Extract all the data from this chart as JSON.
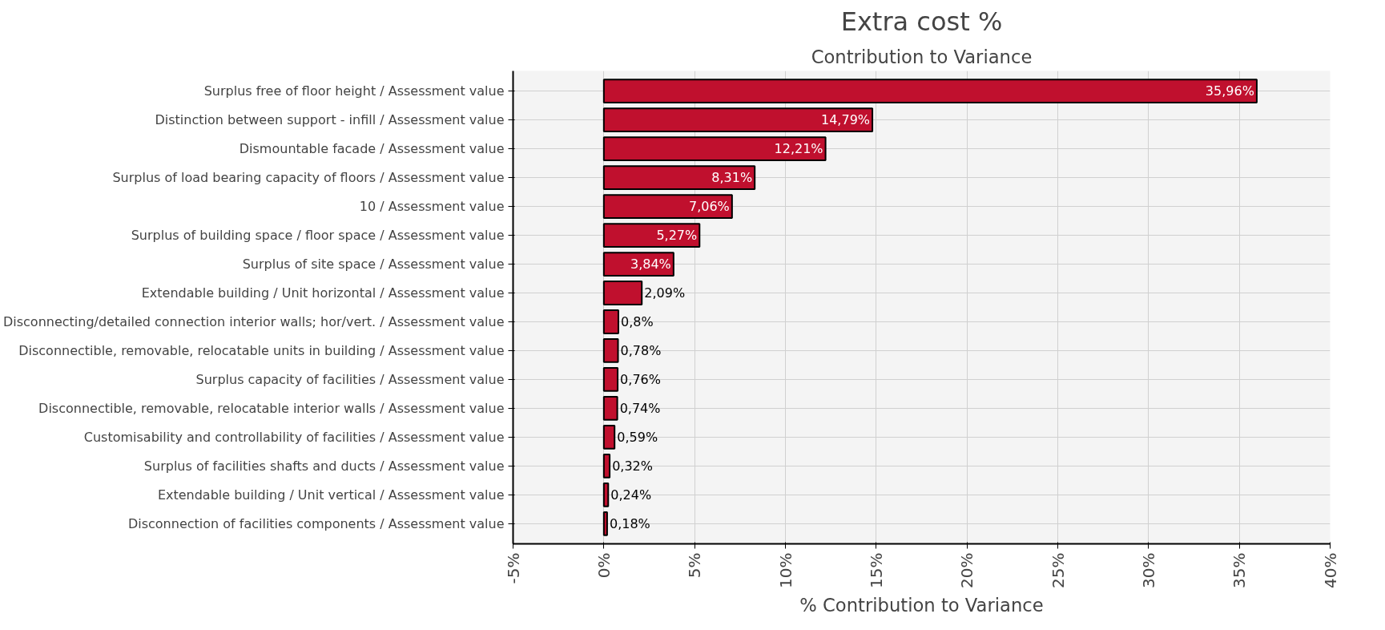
{
  "chart_data": {
    "type": "bar",
    "orientation": "horizontal",
    "title": "Extra cost %",
    "subtitle": "Contribution to Variance",
    "xlabel": "% Contribution to Variance",
    "categories": [
      "Surplus free of floor height / Assessment value",
      "Distinction between support - infill / Assessment value",
      "Dismountable facade / Assessment value",
      "Surplus of load bearing capacity of floors / Assessment value",
      "10 / Assessment value",
      "Surplus of building space / floor space / Assessment value",
      "Surplus of site space / Assessment value",
      "Extendable building / Unit horizontal / Assessment value",
      "Disconnecting/detailed connection interior walls; hor/vert. / Assessment value",
      "Disconnectible, removable, relocatable units in building / Assessment value",
      "Surplus capacity of facilities / Assessment value",
      "Disconnectible, removable, relocatable interior walls / Assessment value",
      "Customisability and controllability of facilities / Assessment value",
      "Surplus of facilities shafts and ducts / Assessment value",
      "Extendable building / Unit vertical / Assessment value",
      "Disconnection of facilities components / Assessment value"
    ],
    "values": [
      35.96,
      14.79,
      12.21,
      8.31,
      7.06,
      5.27,
      3.84,
      2.09,
      0.8,
      0.78,
      0.76,
      0.74,
      0.59,
      0.32,
      0.24,
      0.18
    ],
    "value_labels": [
      "35,96%",
      "14,79%",
      "12,21%",
      "8,31%",
      "7,06%",
      "5,27%",
      "3,84%",
      "2,09%",
      "0,8%",
      "0,78%",
      "0,76%",
      "0,74%",
      "0,59%",
      "0,32%",
      "0,24%",
      "0,18%"
    ],
    "color": "#c0102e",
    "xlim": [
      -5,
      40
    ],
    "xticks": [
      {
        "value": -5,
        "label": "-5%"
      },
      {
        "value": 0,
        "label": "0%"
      },
      {
        "value": 5,
        "label": "5%"
      },
      {
        "value": 10,
        "label": "10%"
      },
      {
        "value": 15,
        "label": "15%"
      },
      {
        "value": 20,
        "label": "20%"
      },
      {
        "value": 25,
        "label": "25%"
      },
      {
        "value": 30,
        "label": "30%"
      },
      {
        "value": 35,
        "label": "35%"
      },
      {
        "value": 40,
        "label": "40%"
      }
    ],
    "grid": true
  }
}
